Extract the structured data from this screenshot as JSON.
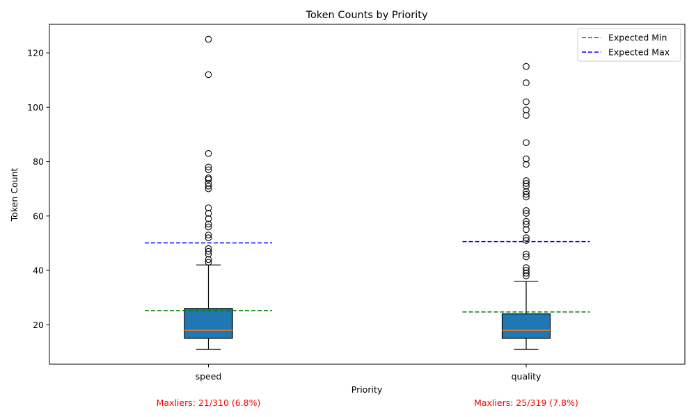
{
  "chart_data": {
    "type": "box",
    "title": "Token Counts by Priority",
    "xlabel": "Priority",
    "ylabel": "Token Count",
    "ylim": [
      5.5,
      130.5
    ],
    "yticks": [
      20,
      40,
      60,
      80,
      100,
      120
    ],
    "grid": false,
    "legend_position": "top-right",
    "categories": [
      "speed",
      "quality"
    ],
    "boxes": [
      {
        "category": "speed",
        "whisker_low": 11,
        "q1": 15,
        "median": 18,
        "q3": 26,
        "whisker_high": 42,
        "outliers": [
          43,
          44,
          46,
          47,
          48,
          52,
          53,
          56,
          57,
          59,
          61,
          63,
          70,
          71,
          72,
          73.5,
          74,
          77,
          78,
          83,
          112,
          125
        ],
        "expected_min": 25.2,
        "expected_max": 50.1,
        "annotation": "Maxliers: 21/310 (6.8%)"
      },
      {
        "category": "quality",
        "whisker_low": 11,
        "q1": 15,
        "median": 18,
        "q3": 24,
        "whisker_high": 36,
        "outliers": [
          38,
          39,
          40,
          41,
          45,
          46,
          51,
          52,
          55,
          57,
          58,
          61,
          62,
          67,
          68,
          69,
          71,
          72,
          73,
          79,
          81,
          87,
          97,
          99,
          102,
          109,
          115
        ],
        "expected_min": 24.7,
        "expected_max": 50.6,
        "annotation": "Maxliers: 25/319 (7.8%)"
      }
    ],
    "legend": [
      {
        "label": "Expected Min",
        "color": "#008000",
        "style": "dashed"
      },
      {
        "label": "Expected Max",
        "color": "#0000ff",
        "style": "dashed"
      }
    ],
    "colors": {
      "box_fill": "#1f77b4",
      "median": "#ff7f0e",
      "annotation": "#ff0000"
    }
  }
}
